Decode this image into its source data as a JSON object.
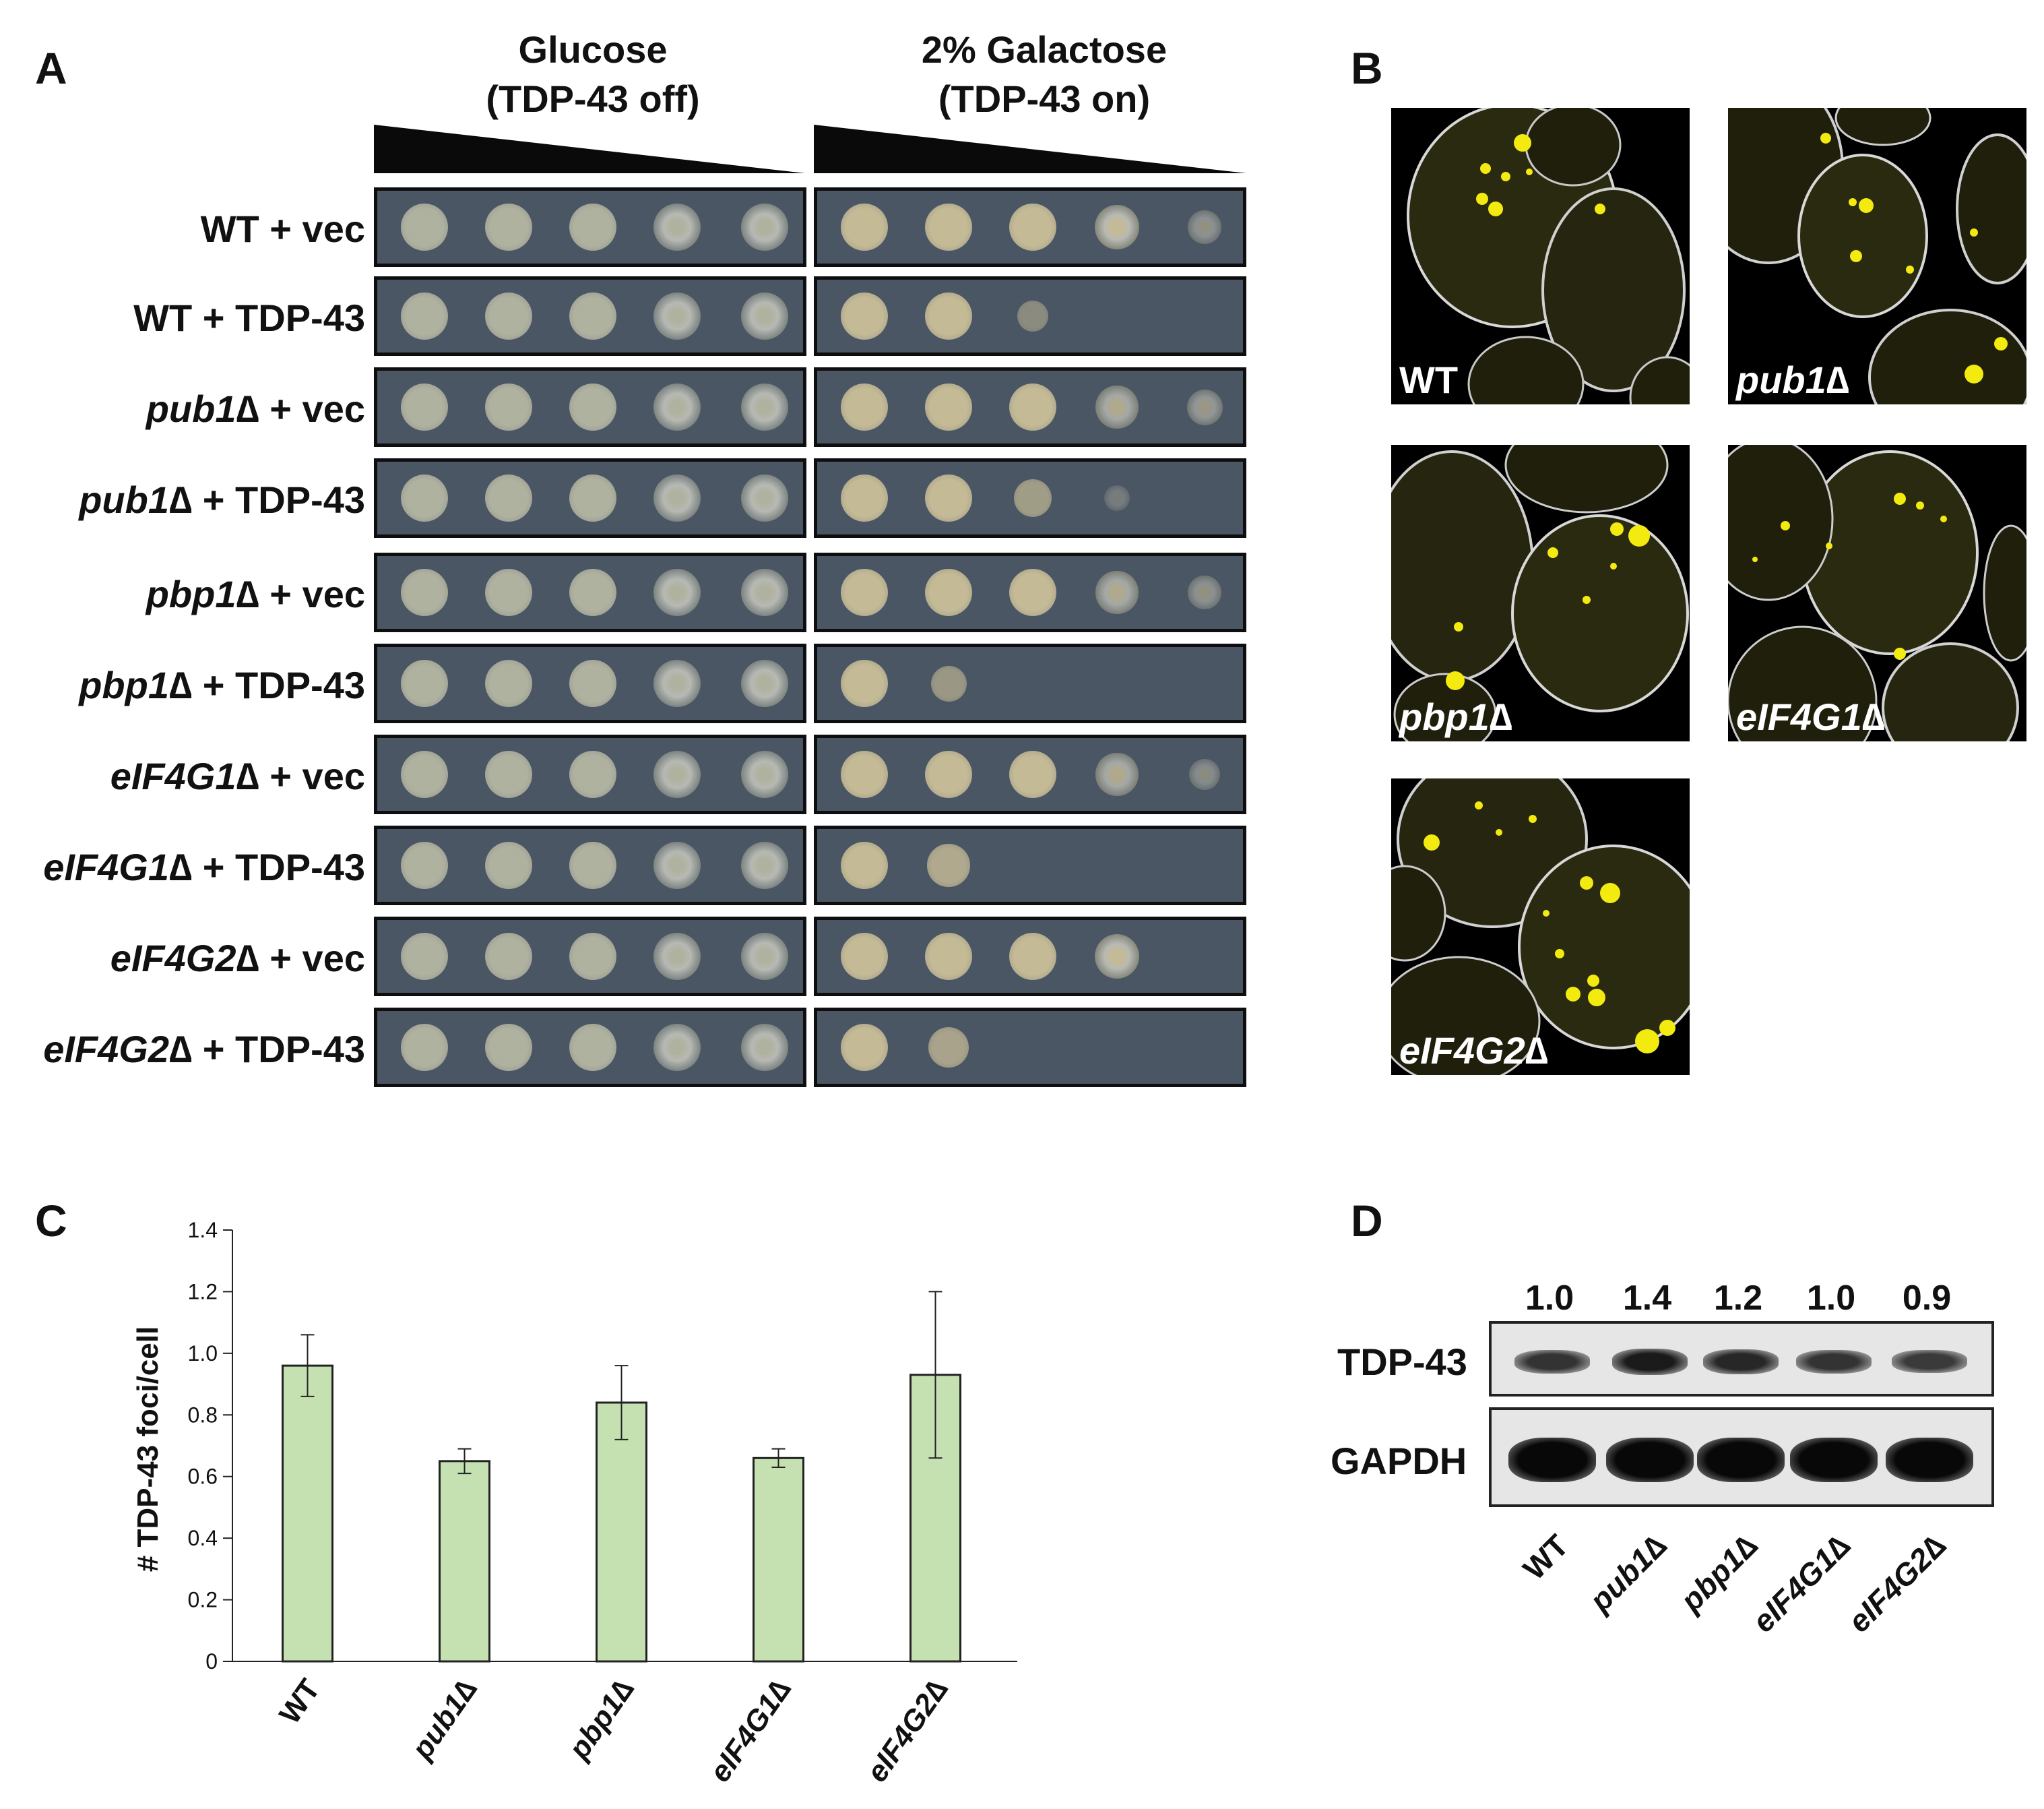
{
  "panels": {
    "A": "A",
    "B": "B",
    "C": "C",
    "D": "D"
  },
  "panel_a": {
    "glucose_title_1": "Glucose",
    "glucose_title_2": "(TDP-43 off)",
    "galactose_title_1": "2% Galactose",
    "galactose_title_2": "(TDP-43 on)",
    "rows": [
      {
        "genotype": "WT",
        "italic": false,
        "suffix": " + vec",
        "glucose_growth": [
          1,
          1,
          1,
          1,
          1
        ],
        "galactose_growth": [
          1,
          1,
          1,
          0.9,
          0.4
        ]
      },
      {
        "genotype": "WT",
        "italic": false,
        "suffix": " + TDP-43",
        "glucose_growth": [
          1,
          1,
          1,
          1,
          1
        ],
        "galactose_growth": [
          1,
          1,
          0.3,
          0,
          0
        ]
      },
      {
        "genotype": "pub1∆",
        "italic": true,
        "suffix": " + vec",
        "glucose_growth": [
          1,
          1,
          1,
          1,
          1
        ],
        "galactose_growth": [
          1,
          1,
          1,
          0.8,
          0.5
        ]
      },
      {
        "genotype": "pub1∆",
        "italic": true,
        "suffix": " + TDP-43",
        "glucose_growth": [
          1,
          1,
          1,
          1,
          1
        ],
        "galactose_growth": [
          1,
          1,
          0.6,
          0.05,
          0
        ]
      },
      {
        "genotype": "pbp1∆",
        "italic": true,
        "suffix": " + vec",
        "glucose_growth": [
          1,
          1,
          1,
          1,
          1
        ],
        "galactose_growth": [
          1,
          1,
          1,
          0.8,
          0.4
        ]
      },
      {
        "genotype": "pbp1∆",
        "italic": true,
        "suffix": " + TDP-43",
        "glucose_growth": [
          1,
          1,
          1,
          1,
          1
        ],
        "galactose_growth": [
          1,
          0.5,
          0,
          0,
          0
        ]
      },
      {
        "genotype": "eIF4G1∆",
        "italic": true,
        "suffix": " + vec",
        "glucose_growth": [
          1,
          1,
          1,
          1,
          1
        ],
        "galactose_growth": [
          1,
          1,
          1,
          0.8,
          0.3
        ]
      },
      {
        "genotype": "eIF4G1∆",
        "italic": true,
        "suffix": " + TDP-43",
        "glucose_growth": [
          1,
          1,
          1,
          1,
          1
        ],
        "galactose_growth": [
          1,
          0.8,
          0,
          0,
          0
        ]
      },
      {
        "genotype": "eIF4G2∆",
        "italic": true,
        "suffix": " + vec",
        "glucose_growth": [
          1,
          1,
          1,
          1,
          1
        ],
        "galactose_growth": [
          1,
          1,
          1,
          0.9,
          0
        ]
      },
      {
        "genotype": "eIF4G2∆",
        "italic": true,
        "suffix": " + TDP-43",
        "glucose_growth": [
          1,
          1,
          1,
          1,
          1
        ],
        "galactose_growth": [
          1,
          0.7,
          0,
          0,
          0
        ]
      }
    ]
  },
  "panel_b": {
    "images": [
      {
        "label": "WT"
      },
      {
        "label": "pub1∆"
      },
      {
        "label": "pbp1∆"
      },
      {
        "label": "eIF4G1∆"
      },
      {
        "label": "eIF4G2∆"
      }
    ]
  },
  "chart_data": {
    "type": "bar",
    "categories": [
      "WT",
      "pub1∆",
      "pbp1∆",
      "eIF4G1∆",
      "eIF4G2∆"
    ],
    "values": [
      0.96,
      0.65,
      0.84,
      0.66,
      0.93
    ],
    "errors": [
      0.1,
      0.04,
      0.12,
      0.03,
      0.27
    ],
    "ylabel": "# TDP-43 foci/cell",
    "xlabel": "",
    "ylim": [
      0,
      1.4
    ],
    "yticks": [
      "0",
      "0.2",
      "0.4",
      "0.6",
      "0.8",
      "1.0",
      "1.2",
      "1.4"
    ],
    "bar_color": "#c6e1b1",
    "grid": false
  },
  "panel_d": {
    "quantification": [
      "1.0",
      "1.4",
      "1.2",
      "1.0",
      "0.9"
    ],
    "rows": [
      "TDP-43",
      "GAPDH"
    ],
    "lanes": [
      "WT",
      "pub1∆",
      "pbp1∆",
      "eIF4G1∆",
      "eIF4G2∆"
    ]
  }
}
